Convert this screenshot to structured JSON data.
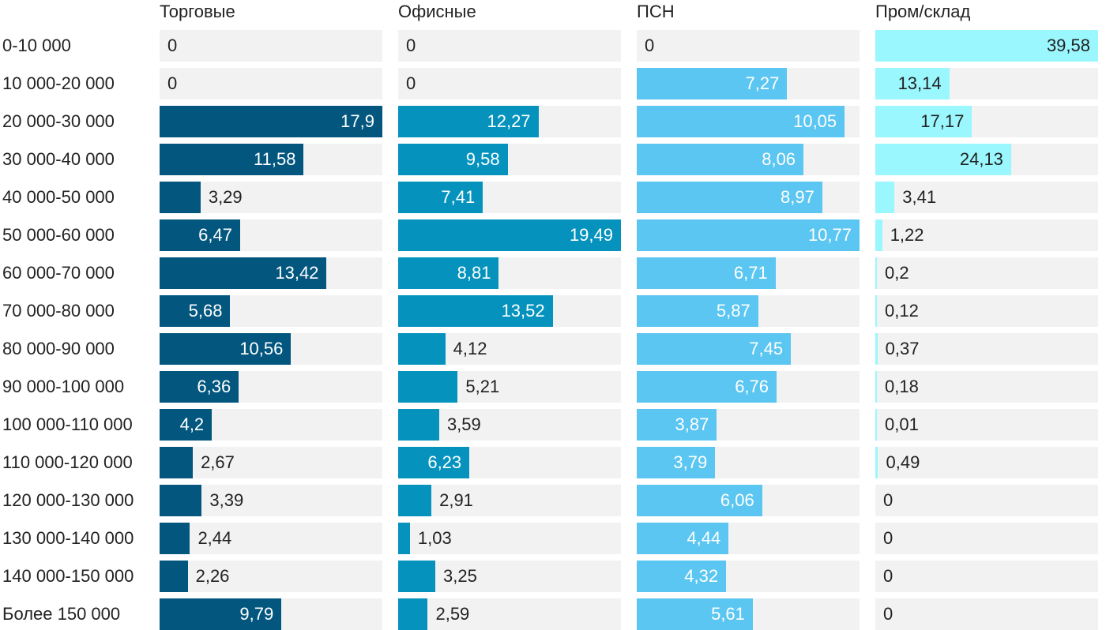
{
  "chart_data": {
    "type": "bar",
    "orientation": "horizontal",
    "layout": "small-multiples",
    "categories": [
      "0-10 000",
      "10 000-20 000",
      "20 000-30 000",
      "30 000-40 000",
      "40 000-50 000",
      "50 000-60 000",
      "60 000-70 000",
      "70 000-80 000",
      "80 000-90 000",
      "90 000-100 000",
      "100 000-110 000",
      "110 000-120 000",
      "120 000-130 000",
      "130 000-140 000",
      "140 000-150 000",
      "Более 150 000"
    ],
    "series": [
      {
        "name": "Торговые",
        "color": "#03577f",
        "values": [
          0,
          0,
          17.9,
          11.58,
          3.29,
          6.47,
          13.42,
          5.68,
          10.56,
          6.36,
          4.2,
          2.67,
          3.39,
          2.44,
          2.26,
          9.79
        ],
        "labels": [
          "0",
          "0",
          "17,9",
          "11,58",
          "3,29",
          "6,47",
          "13,42",
          "5,68",
          "10,56",
          "6,36",
          "4,2",
          "2,67",
          "3,39",
          "2,44",
          "2,26",
          "9,79"
        ]
      },
      {
        "name": "Офисные",
        "color": "#0593be",
        "values": [
          0,
          0,
          12.27,
          9.58,
          7.41,
          19.49,
          8.81,
          13.52,
          4.12,
          5.21,
          3.59,
          6.23,
          2.91,
          1.03,
          3.25,
          2.59
        ],
        "labels": [
          "0",
          "0",
          "12,27",
          "9,58",
          "7,41",
          "19,49",
          "8,81",
          "13,52",
          "4,12",
          "5,21",
          "3,59",
          "6,23",
          "2,91",
          "1,03",
          "3,25",
          "2,59"
        ]
      },
      {
        "name": "ПСН",
        "color": "#5bc6f1",
        "values": [
          0,
          7.27,
          10.05,
          8.06,
          8.97,
          10.77,
          6.71,
          5.87,
          7.45,
          6.76,
          3.87,
          3.79,
          6.06,
          4.44,
          4.32,
          5.61
        ],
        "labels": [
          "0",
          "7,27",
          "10,05",
          "8,06",
          "8,97",
          "10,77",
          "6,71",
          "5,87",
          "7,45",
          "6,76",
          "3,87",
          "3,79",
          "6,06",
          "4,44",
          "4,32",
          "5,61"
        ]
      },
      {
        "name": "Пром/склад",
        "color": "#9af7fd",
        "values": [
          39.58,
          13.14,
          17.17,
          24.13,
          3.41,
          1.22,
          0.2,
          0.12,
          0.37,
          0.18,
          0.01,
          0.49,
          0,
          0,
          0,
          0
        ],
        "labels": [
          "39,58",
          "13,14",
          "17,17",
          "24,13",
          "3,41",
          "1,22",
          "0,2",
          "0,12",
          "0,37",
          "0,18",
          "0,01",
          "0,49",
          "0",
          "0",
          "0",
          "0"
        ]
      }
    ],
    "label_colors": {
      "inside_light": "#ffffff",
      "inside_dark": "#222222",
      "outside": "#222222"
    },
    "track_color": "#f2f2f2",
    "title": "",
    "xlabel": "",
    "ylabel": "",
    "grid": false,
    "legend": "none"
  }
}
